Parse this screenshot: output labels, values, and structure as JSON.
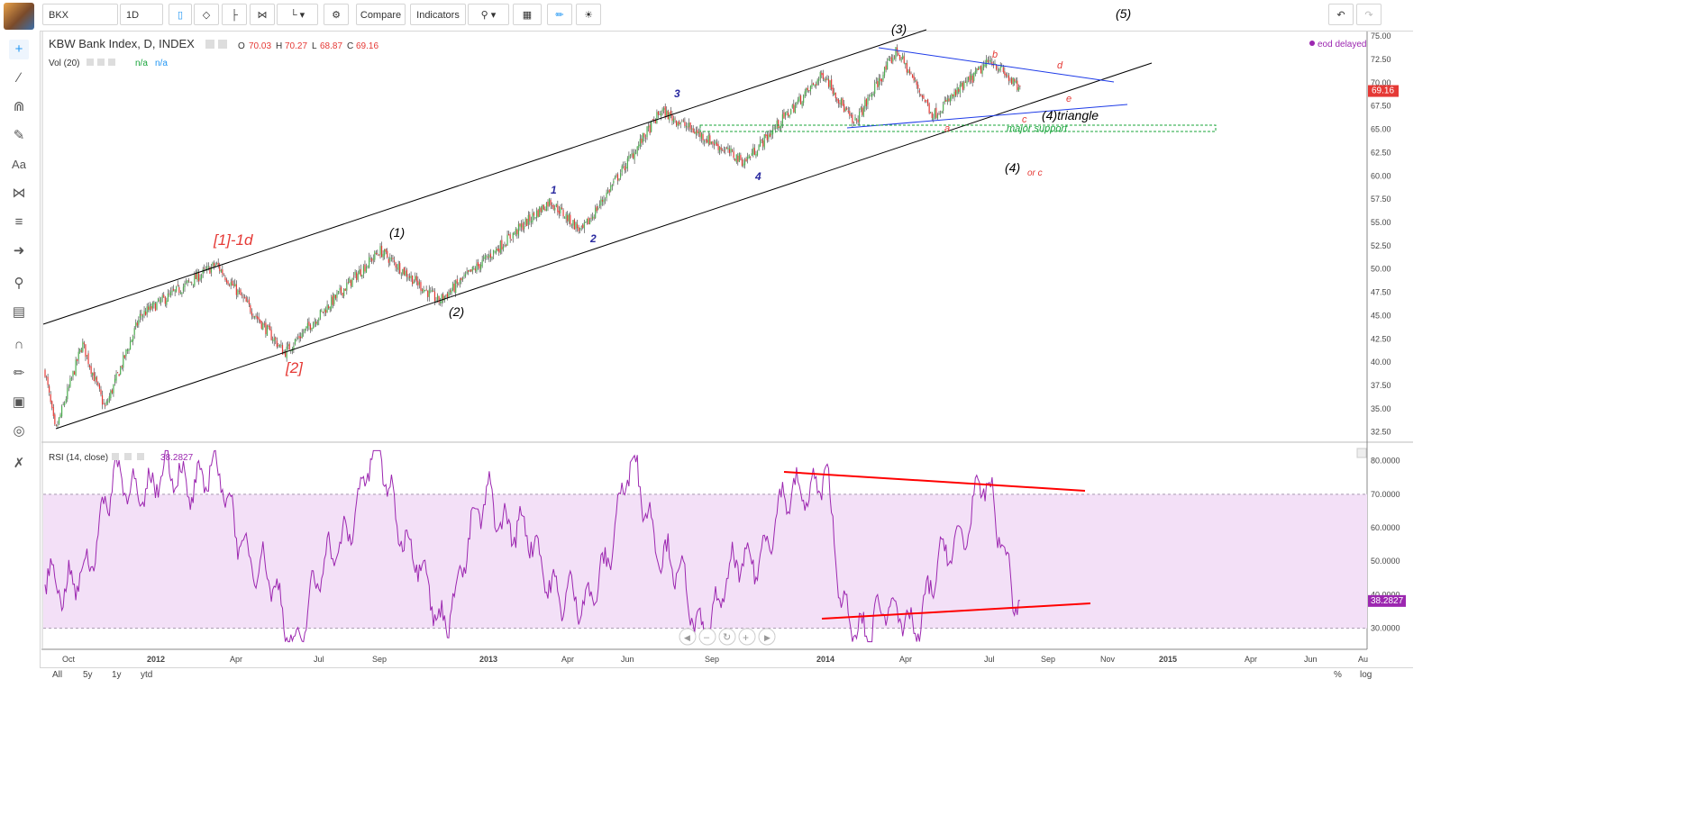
{
  "toolbar": {
    "symbol": "BKX",
    "interval": "1D",
    "compare_label": "Compare",
    "indicators_label": "Indicators",
    "icons": [
      "candles-icon",
      "heikin-icon",
      "bars-icon",
      "renko-icon",
      "line-icon",
      "settings-icon",
      "search-icon",
      "template-icon",
      "brush-icon",
      "bulb-icon",
      "undo-icon",
      "redo-icon"
    ]
  },
  "legend": {
    "title": "KBW Bank Index, D, INDEX",
    "open_label": "O",
    "open": "70.03",
    "high_label": "H",
    "high": "70.27",
    "low_label": "L",
    "low": "68.87",
    "close_label": "C",
    "close": "69.16",
    "volume_label": "Vol (20)",
    "volume_value_1": "n/a",
    "volume_value_2": "n/a",
    "status": "eod delayed",
    "rsi_label": "RSI (14, close)",
    "rsi_value": "38.2827"
  },
  "bottom": {
    "ranges": [
      "All",
      "5y",
      "1y",
      "ytd"
    ],
    "percent": "%",
    "log": "log"
  },
  "colors": {
    "up": "#4caf50",
    "down": "#e53935",
    "rsi": "#9c27b0",
    "rsi_band": "#f3e0f7",
    "channel": "#000000",
    "triangle": "#1e3be8",
    "rsi_trend": "#ff0000",
    "support": "#18a43a",
    "price_tag": "#e53935"
  },
  "chart_data": [
    {
      "type": "line",
      "title": "KBW Bank Index, D, INDEX",
      "x_ticks": [
        "Oct",
        "2012",
        "Apr",
        "Jul",
        "Sep",
        "2013",
        "Apr",
        "Jun",
        "Sep",
        "2014",
        "Apr",
        "Jul",
        "Sep",
        "Nov",
        "2015",
        "Apr",
        "Jun",
        "Au"
      ],
      "y_ticks": [
        32.5,
        35,
        37.5,
        40,
        42.5,
        45,
        47.5,
        50,
        52.5,
        55,
        57.5,
        60,
        62.5,
        65,
        67.5,
        70,
        72.5,
        75
      ],
      "ylim": [
        31.5,
        75.5
      ],
      "last_price": 69.16,
      "series": [
        {
          "x": [
            "2011-09-22",
            "2011-10-03",
            "2011-11-01",
            "2011-11-25",
            "2012-01-02",
            "2012-03-23",
            "2012-06-04",
            "2012-09-14",
            "2012-11-16",
            "2013-03-15",
            "2013-04-18",
            "2013-07-12",
            "2013-10-09",
            "2014-01-02",
            "2014-02-03",
            "2014-03-21",
            "2014-04-29",
            "2014-06-30",
            "2014-07-31"
          ],
          "values": [
            39,
            32.5,
            42,
            35,
            45,
            50.5,
            41,
            52,
            46.5,
            57.3,
            54,
            67,
            61.5,
            71,
            65.5,
            73.5,
            66.5,
            72.5,
            69.16
          ]
        }
      ],
      "annotations": [
        "[1]-1d",
        "[2]",
        "(1)",
        "(2)",
        "1",
        "2",
        "3",
        "4",
        "(3)",
        "(4)triangle",
        "(4)",
        "or c",
        "(5)",
        "a",
        "b",
        "c",
        "d",
        "e",
        "major support"
      ]
    },
    {
      "type": "line",
      "title": "RSI (14, close)",
      "y_ticks": [
        "30.0000",
        "40.0000",
        "50.0000",
        "60.0000",
        "70.0000",
        "80.0000"
      ],
      "ylim": [
        24,
        85
      ],
      "band": [
        30,
        70
      ],
      "last_value": "38.2827",
      "series": [
        {
          "x": [
            "2011-09-22",
            "2011-10-13",
            "2011-12-05",
            "2012-03-19",
            "2012-06-15",
            "2012-09-12",
            "2012-11-16",
            "2013-01-10",
            "2013-04-20",
            "2013-06-11",
            "2013-08-20",
            "2013-12-15",
            "2014-01-04",
            "2014-01-22",
            "2014-04-15",
            "2014-06-20",
            "2014-07-31"
          ],
          "values": [
            50,
            36,
            72,
            76,
            27,
            82,
            31,
            70,
            33,
            77,
            30,
            74,
            76,
            32,
            34,
            73,
            38.3
          ]
        }
      ]
    }
  ]
}
